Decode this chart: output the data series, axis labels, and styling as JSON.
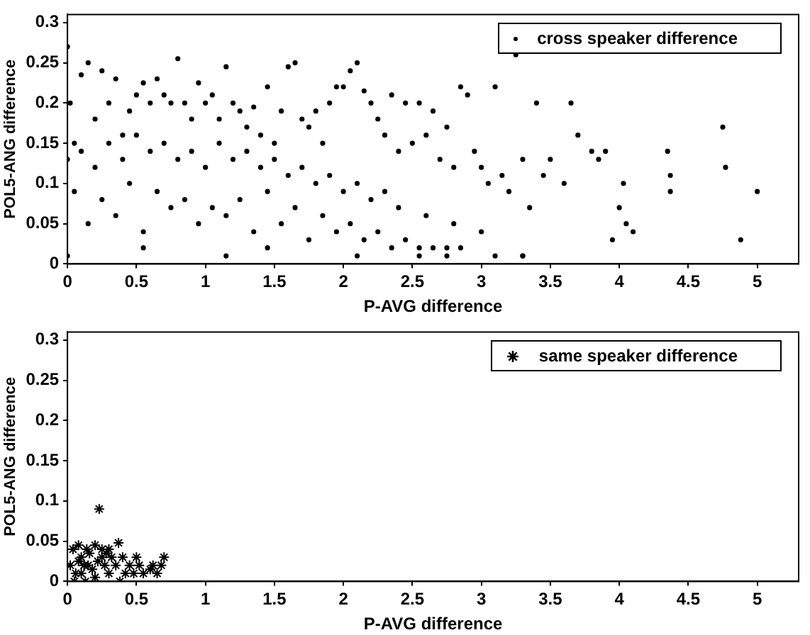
{
  "chart_data": [
    {
      "type": "scatter",
      "xlabel": "P-AVG difference",
      "ylabel": "POL5-ANG difference",
      "legend": "top right",
      "marker": "circle",
      "grid": false,
      "xlim": [
        0,
        5.3
      ],
      "ylim": [
        0,
        0.31
      ],
      "xticks": [
        0,
        0.5,
        1,
        1.5,
        2,
        2.5,
        3,
        3.5,
        4,
        4.5,
        5
      ],
      "yticks": [
        0,
        0.05,
        0.1,
        0.15,
        0.2,
        0.25,
        0.3
      ],
      "series": [
        {
          "name": "cross speaker difference",
          "color": "#000000",
          "x": [
            0,
            0.02,
            0.05,
            0.1,
            0.15,
            0.2,
            0.25,
            0.3,
            0.35,
            0.4,
            0.45,
            0.5,
            0.55,
            0.6,
            0.65,
            0.7,
            0.75,
            0.8,
            0.85,
            0.9,
            0.95,
            1.0,
            1.05,
            1.1,
            1.15,
            1.2,
            1.25,
            1.3,
            1.35,
            1.4,
            1.45,
            1.5,
            1.55,
            1.6,
            1.65,
            1.7,
            1.75,
            1.8,
            1.85,
            1.9,
            1.95,
            2.0,
            2.05,
            2.1,
            2.15,
            2.2,
            2.25,
            2.3,
            2.35,
            2.4,
            2.45,
            2.5,
            2.55,
            2.6,
            2.65,
            2.7,
            2.75,
            2.8,
            2.85,
            2.9,
            2.95,
            3.0,
            3.05,
            3.1,
            3.15,
            3.2,
            3.25,
            3.3,
            3.35,
            3.4,
            3.45,
            3.5,
            3.6,
            3.65,
            3.7,
            3.8,
            3.85,
            3.9,
            3.95,
            4.0,
            4.03,
            4.05,
            4.1,
            4.35,
            4.37,
            4.37,
            4.75,
            4.77,
            4.88,
            5.0,
            0.0,
            0.1,
            0.2,
            0.3,
            0.4,
            0.5,
            0.6,
            0.7,
            0.8,
            0.9,
            1.0,
            1.1,
            1.2,
            1.3,
            1.4,
            1.5,
            1.6,
            1.7,
            1.8,
            1.9,
            2.0,
            2.1,
            2.2,
            2.3,
            2.4,
            2.6,
            2.8,
            3.0,
            0.15,
            0.35,
            0.55,
            0.75,
            0.95,
            1.15,
            1.35,
            1.55,
            1.75,
            1.95,
            2.15,
            2.35,
            2.55,
            2.75,
            0.05,
            0.25,
            0.45,
            0.65,
            0.85,
            1.05,
            1.25,
            1.45,
            1.65,
            1.85,
            2.05,
            2.25,
            2.45,
            2.65,
            2.85,
            3.1,
            3.3,
            0.0,
            0.55,
            1.15,
            1.45,
            2.1,
            2.55,
            2.75,
            3.3
          ],
          "values": [
            0.27,
            0.2,
            0.15,
            0.235,
            0.25,
            0.18,
            0.24,
            0.2,
            0.23,
            0.16,
            0.19,
            0.21,
            0.225,
            0.2,
            0.23,
            0.21,
            0.2,
            0.255,
            0.2,
            0.18,
            0.225,
            0.2,
            0.21,
            0.18,
            0.245,
            0.2,
            0.19,
            0.17,
            0.195,
            0.16,
            0.22,
            0.15,
            0.19,
            0.245,
            0.25,
            0.18,
            0.17,
            0.19,
            0.15,
            0.2,
            0.22,
            0.22,
            0.24,
            0.25,
            0.215,
            0.2,
            0.18,
            0.16,
            0.21,
            0.14,
            0.2,
            0.15,
            0.2,
            0.16,
            0.19,
            0.13,
            0.17,
            0.12,
            0.22,
            0.21,
            0.14,
            0.12,
            0.1,
            0.22,
            0.11,
            0.09,
            0.26,
            0.13,
            0.07,
            0.2,
            0.11,
            0.13,
            0.1,
            0.2,
            0.16,
            0.14,
            0.13,
            0.14,
            0.03,
            0.07,
            0.1,
            0.05,
            0.04,
            0.14,
            0.11,
            0.09,
            0.17,
            0.12,
            0.03,
            0.09,
            0.13,
            0.14,
            0.12,
            0.15,
            0.13,
            0.16,
            0.14,
            0.15,
            0.13,
            0.14,
            0.12,
            0.15,
            0.13,
            0.14,
            0.12,
            0.13,
            0.11,
            0.12,
            0.1,
            0.11,
            0.09,
            0.1,
            0.08,
            0.09,
            0.07,
            0.06,
            0.05,
            0.04,
            0.05,
            0.06,
            0.04,
            0.07,
            0.05,
            0.06,
            0.04,
            0.05,
            0.03,
            0.04,
            0.03,
            0.02,
            0.02,
            0.01,
            0.09,
            0.08,
            0.1,
            0.09,
            0.08,
            0.07,
            0.08,
            0.09,
            0.07,
            0.06,
            0.05,
            0.04,
            0.03,
            0.02,
            0.02,
            0.01,
            0.01,
            0.01,
            0.02,
            0.01,
            0.02,
            0.01,
            0.01,
            0.02,
            0.01
          ]
        }
      ]
    },
    {
      "type": "scatter",
      "xlabel": "P-AVG difference",
      "ylabel": "POL5-ANG difference",
      "legend": "top right",
      "marker": "cross",
      "grid": false,
      "xlim": [
        0,
        5.3
      ],
      "ylim": [
        0,
        0.31
      ],
      "xticks": [
        0,
        0.5,
        1,
        1.5,
        2,
        2.5,
        3,
        3.5,
        4,
        4.5,
        5
      ],
      "yticks": [
        0,
        0.05,
        0.1,
        0.15,
        0.2,
        0.25,
        0.3
      ],
      "series": [
        {
          "name": "same speaker difference",
          "color": "#000000",
          "x": [
            0.02,
            0.04,
            0.06,
            0.08,
            0.1,
            0.12,
            0.14,
            0.16,
            0.13,
            0.2,
            0.22,
            0.23,
            0.25,
            0.27,
            0.3,
            0.32,
            0.35,
            0.37,
            0.38,
            0.4,
            0.45,
            0.48,
            0.5,
            0.52,
            0.55,
            0.6,
            0.62,
            0.65,
            0.68,
            0.7,
            0.05,
            0.1,
            0.15,
            0.2,
            0.25,
            0.3,
            0.08,
            0.18,
            0.28,
            0.42
          ],
          "values": [
            0.02,
            0.04,
            0.01,
            0.045,
            0.03,
            0.02,
            0.04,
            0.035,
            0.0,
            0.045,
            0.025,
            0.09,
            0.03,
            0.02,
            0.01,
            0.03,
            0.02,
            0.048,
            0.0,
            0.03,
            0.02,
            0.01,
            0.03,
            0.02,
            0.01,
            0.015,
            0.02,
            0.01,
            0.02,
            0.03,
            0.0,
            0.01,
            0.02,
            0.005,
            0.04,
            0.04,
            0.025,
            0.015,
            0.035,
            0.01
          ]
        }
      ]
    }
  ]
}
